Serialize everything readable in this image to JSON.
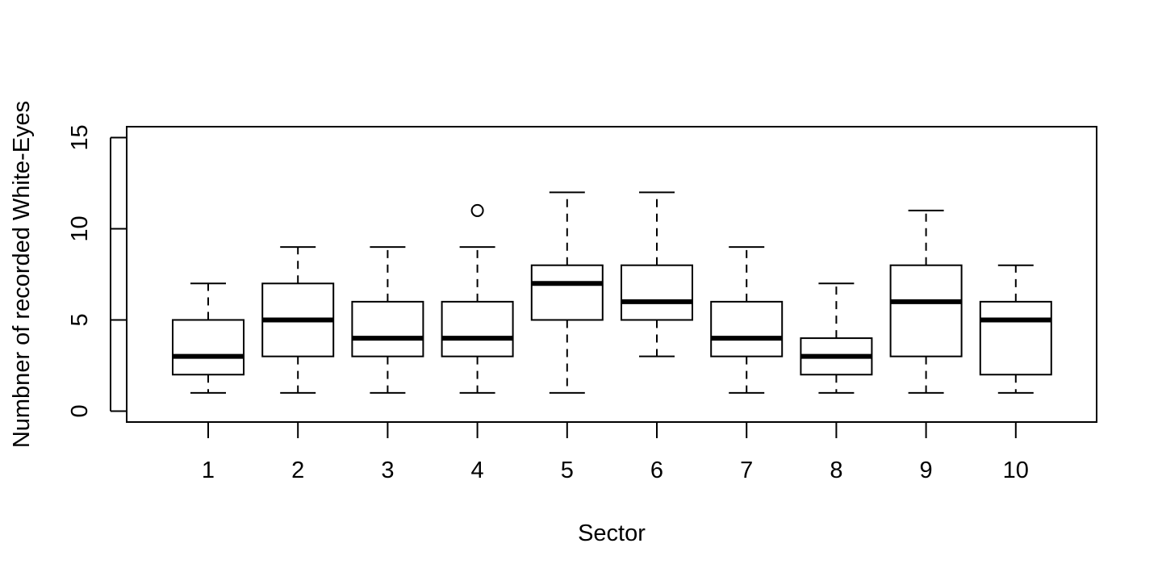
{
  "chart_data": {
    "type": "boxplot",
    "title": "",
    "xlabel": "Sector",
    "ylabel": "Numbner of recorded White-Eyes",
    "ylim": [
      -0.6,
      15.6
    ],
    "yticks": [
      0,
      5,
      10,
      15
    ],
    "categories": [
      "1",
      "2",
      "3",
      "4",
      "5",
      "6",
      "7",
      "8",
      "9",
      "10"
    ],
    "boxes": [
      {
        "min": 1,
        "q1": 2,
        "median": 3,
        "q3": 5,
        "max": 7,
        "outliers": []
      },
      {
        "min": 1,
        "q1": 3,
        "median": 5,
        "q3": 7,
        "max": 9,
        "outliers": []
      },
      {
        "min": 1,
        "q1": 3,
        "median": 4,
        "q3": 6,
        "max": 9,
        "outliers": []
      },
      {
        "min": 1,
        "q1": 3,
        "median": 4,
        "q3": 6,
        "max": 9,
        "outliers": [
          11
        ]
      },
      {
        "min": 1,
        "q1": 5,
        "median": 7,
        "q3": 8,
        "max": 12,
        "outliers": []
      },
      {
        "min": 3,
        "q1": 5,
        "median": 6,
        "q3": 8,
        "max": 12,
        "outliers": []
      },
      {
        "min": 1,
        "q1": 3,
        "median": 4,
        "q3": 6,
        "max": 9,
        "outliers": []
      },
      {
        "min": 1,
        "q1": 2,
        "median": 3,
        "q3": 4,
        "max": 7,
        "outliers": []
      },
      {
        "min": 1,
        "q1": 3,
        "median": 6,
        "q3": 8,
        "max": 11,
        "outliers": []
      },
      {
        "min": 1,
        "q1": 2,
        "median": 5,
        "q3": 6,
        "max": 8,
        "outliers": []
      }
    ],
    "grid": false,
    "legend": "none"
  }
}
